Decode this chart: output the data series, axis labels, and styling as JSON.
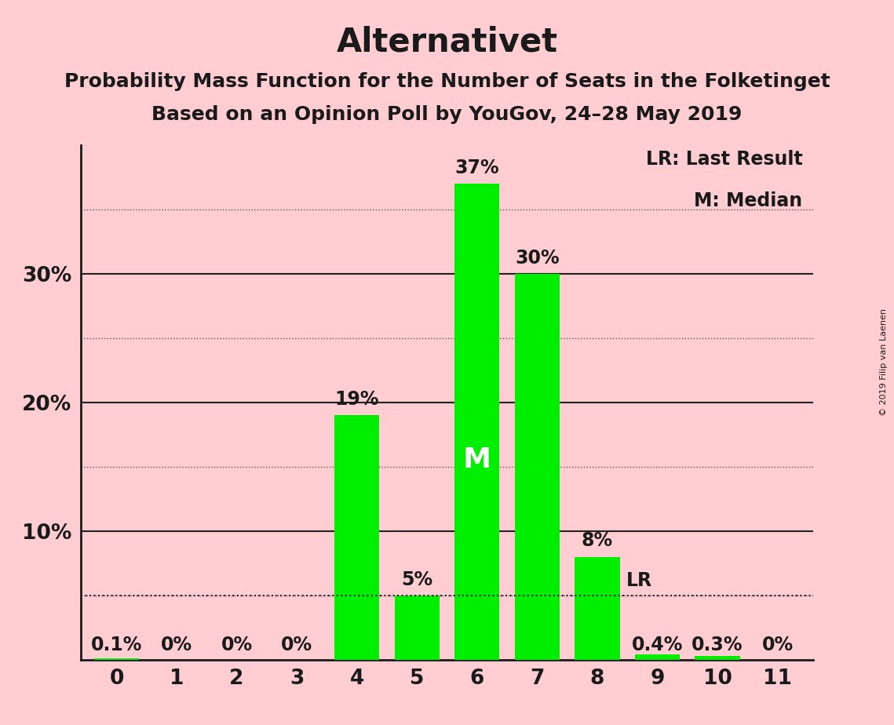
{
  "title": "Alternativet",
  "subtitle1": "Probability Mass Function for the Number of Seats in the Folketinget",
  "subtitle2": "Based on an Opinion Poll by YouGov, 24–28 May 2019",
  "copyright": "© 2019 Filip van Laenen",
  "categories": [
    0,
    1,
    2,
    3,
    4,
    5,
    6,
    7,
    8,
    9,
    10,
    11
  ],
  "values": [
    0.1,
    0,
    0,
    0,
    19,
    5,
    37,
    30,
    8,
    0.4,
    0.3,
    0
  ],
  "bar_color": "#00ee00",
  "background_color": "#ffcdd2",
  "bar_labels": [
    "0.1%",
    "0%",
    "0%",
    "0%",
    "19%",
    "5%",
    "37%",
    "30%",
    "8%",
    "0.4%",
    "0.3%",
    "0%"
  ],
  "median_seat": 6,
  "lr_seat": 9,
  "lr_value": 5,
  "solid_lines": [
    10,
    20,
    30
  ],
  "dotted_lines": [
    5,
    15,
    25,
    35
  ],
  "ylim": [
    0,
    40
  ],
  "legend_lr": "LR: Last Result",
  "legend_m": "M: Median",
  "title_fontsize": 30,
  "subtitle_fontsize": 18,
  "label_fontsize": 17,
  "tick_fontsize": 19,
  "bar_label_fontsize": 17
}
